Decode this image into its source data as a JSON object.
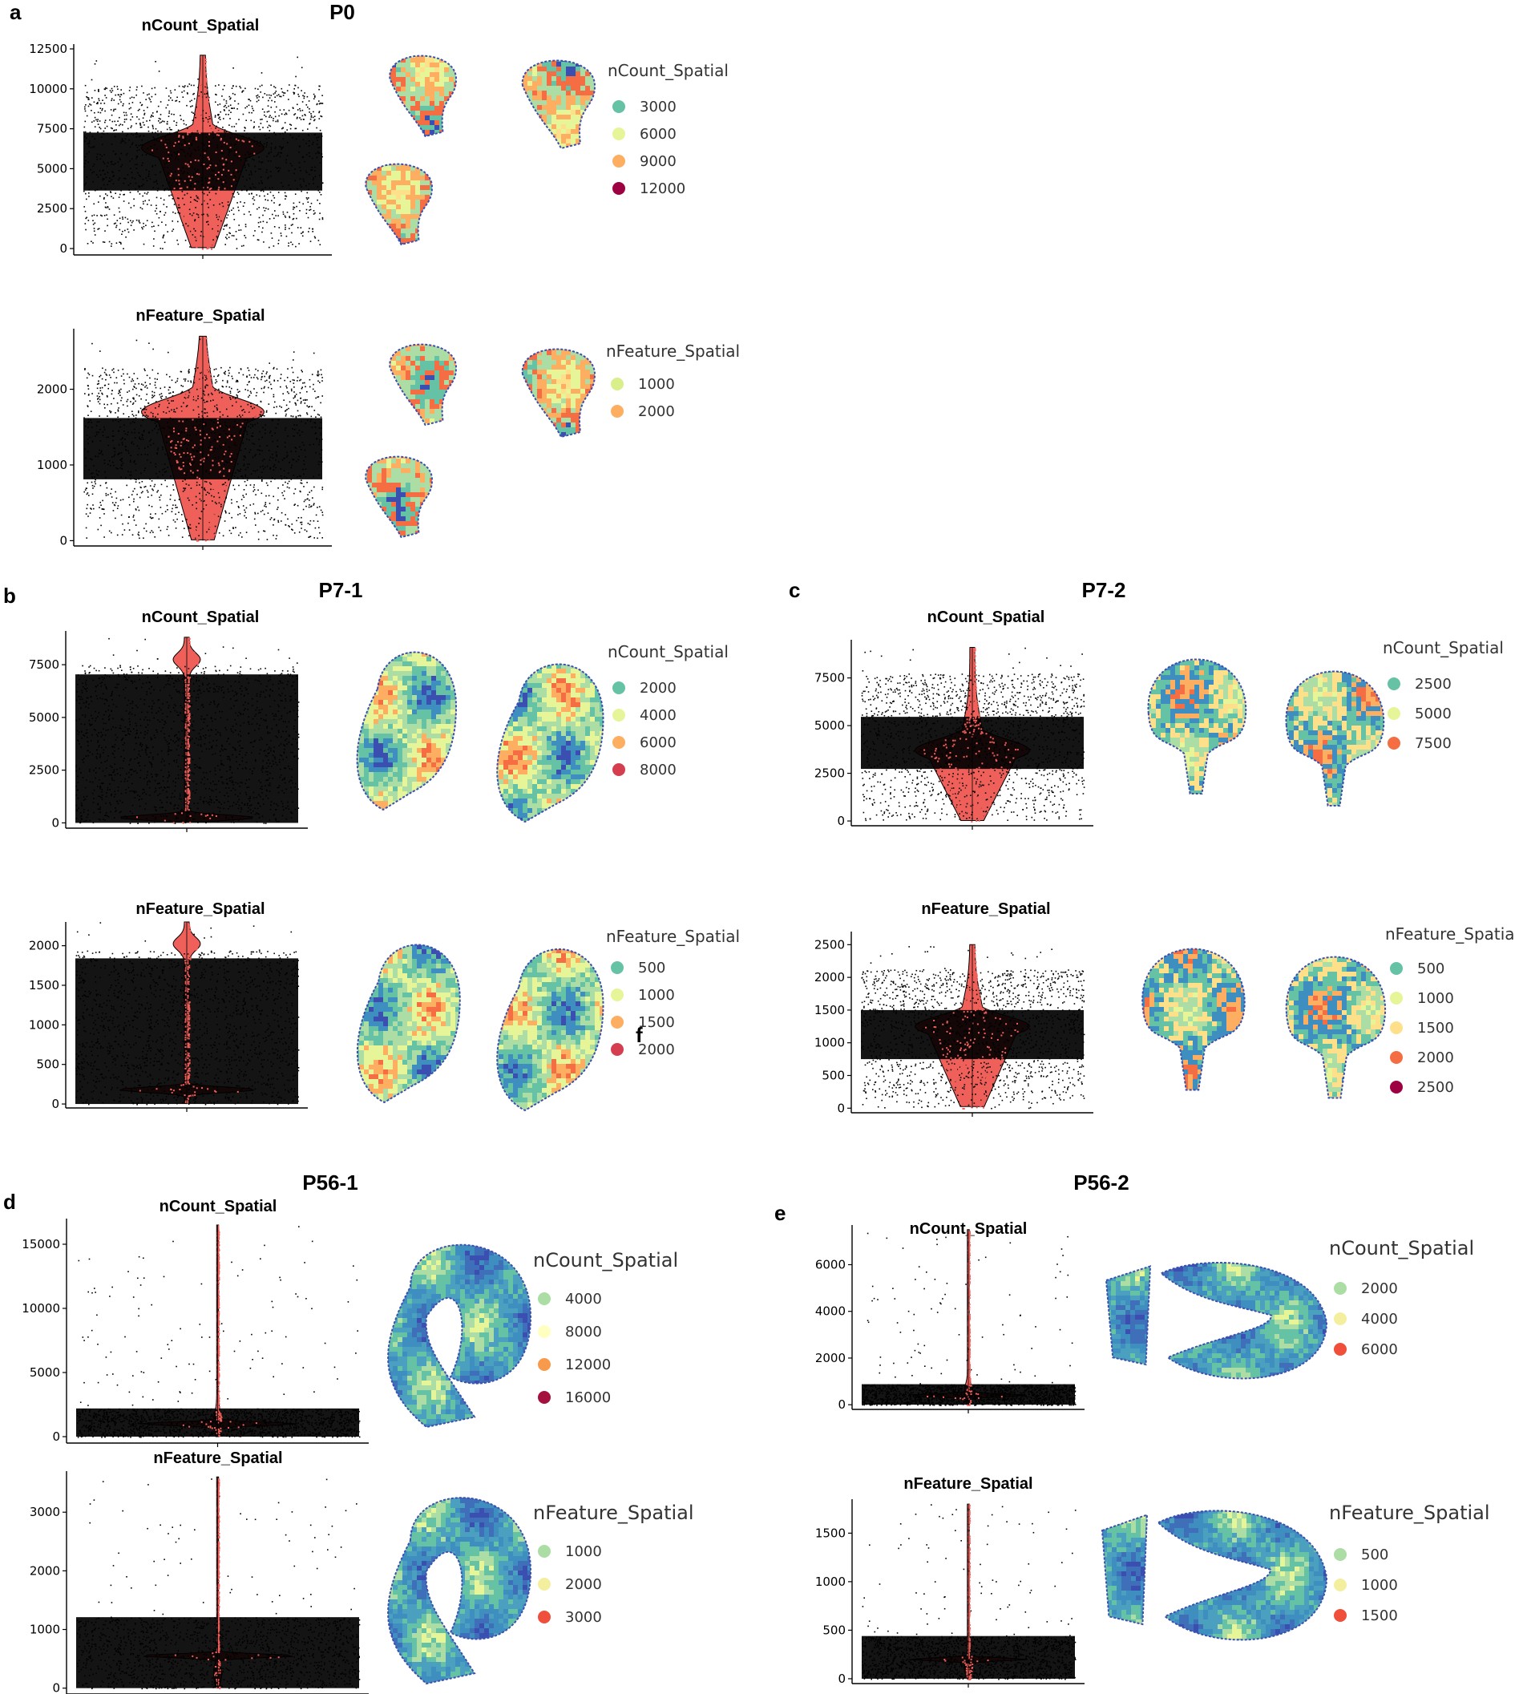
{
  "panel_labels": {
    "a": "a",
    "b": "b",
    "c": "c",
    "d": "d",
    "e": "e"
  },
  "sample_titles": {
    "a": "P0",
    "b": "P7-1",
    "c": "P7-2",
    "d": "P56-1",
    "e": "P56-2"
  },
  "stray_text": "f",
  "colors": {
    "violin_fill": "#f0605a",
    "points": "#000000",
    "spectral": [
      "#3b4fb0",
      "#3e8fc0",
      "#66c2a5",
      "#abdda4",
      "#e6f598",
      "#fee08b",
      "#fdae61",
      "#f46d43",
      "#d53e4f",
      "#9e0142"
    ]
  },
  "chart_data": [
    {
      "id": "a1",
      "type": "violin",
      "title": "nCount_Spatial",
      "ylim": [
        -400,
        12800
      ],
      "ytick_values": [
        0,
        2500,
        5000,
        7500,
        10000,
        12500
      ],
      "ytick_labels": [
        "0",
        "2500",
        "5000",
        "7500",
        "10000",
        "12500"
      ],
      "violin": {
        "min": 0,
        "max": 12100,
        "mode": 6300,
        "shape": "hourglass"
      },
      "legend": {
        "title": "nCount_Spatial",
        "items": [
          {
            "label": "3000",
            "color": "#66c2a5"
          },
          {
            "label": "6000",
            "color": "#e6f598"
          },
          {
            "label": "9000",
            "color": "#fdae61"
          },
          {
            "label": "12000",
            "color": "#9e0142"
          }
        ]
      }
    },
    {
      "id": "a2",
      "type": "violin",
      "title": "nFeature_Spatial",
      "ylim": [
        -70,
        2800
      ],
      "ytick_values": [
        0,
        1000,
        2000
      ],
      "ytick_labels": [
        "0",
        "1000",
        "2000"
      ],
      "violin": {
        "min": 0,
        "max": 2700,
        "mode": 1700,
        "shape": "hourglass"
      },
      "legend": {
        "title": "nFeature_Spatial",
        "items": [
          {
            "label": "1000",
            "color": "#d9ef8b"
          },
          {
            "label": "2000",
            "color": "#fdae61"
          }
        ]
      }
    },
    {
      "id": "b1",
      "type": "violin",
      "title": "nCount_Spatial",
      "ylim": [
        -250,
        9100
      ],
      "ytick_values": [
        0,
        2500,
        5000,
        7500
      ],
      "ytick_labels": [
        "0",
        "2500",
        "5000",
        "7500"
      ],
      "violin": {
        "min": 0,
        "max": 8800,
        "mode": 250,
        "shape": "bottom"
      },
      "legend": {
        "title": "nCount_Spatial",
        "items": [
          {
            "label": "2000",
            "color": "#66c2a5"
          },
          {
            "label": "4000",
            "color": "#e6f598"
          },
          {
            "label": "6000",
            "color": "#fdae61"
          },
          {
            "label": "8000",
            "color": "#d53e4f"
          }
        ]
      }
    },
    {
      "id": "b2",
      "type": "violin",
      "title": "nFeature_Spatial",
      "ylim": [
        -50,
        2300
      ],
      "ytick_values": [
        0,
        500,
        1000,
        1500,
        2000
      ],
      "ytick_labels": [
        "0",
        "500",
        "1000",
        "1500",
        "2000"
      ],
      "violin": {
        "min": 0,
        "max": 2300,
        "mode": 180,
        "shape": "bottom"
      },
      "legend": {
        "title": "nFeature_Spatial",
        "items": [
          {
            "label": "500",
            "color": "#66c2a5"
          },
          {
            "label": "1000",
            "color": "#e6f598"
          },
          {
            "label": "1500",
            "color": "#fdae61"
          },
          {
            "label": "2000",
            "color": "#d53e4f"
          }
        ]
      }
    },
    {
      "id": "c1",
      "type": "violin",
      "title": "nCount_Spatial",
      "ylim": [
        -250,
        9500
      ],
      "ytick_values": [
        0,
        2500,
        5000,
        7500
      ],
      "ytick_labels": [
        "0",
        "2500",
        "5000",
        "7500"
      ],
      "violin": {
        "min": 0,
        "max": 9100,
        "mode": 3700,
        "shape": "hourglass"
      },
      "legend": {
        "title": "nCount_Spatial",
        "items": [
          {
            "label": "2500",
            "color": "#66c2a5"
          },
          {
            "label": "5000",
            "color": "#e6f598"
          },
          {
            "label": "7500",
            "color": "#f46d43"
          }
        ]
      }
    },
    {
      "id": "c2",
      "type": "violin",
      "title": "nFeature_Spatial",
      "ylim": [
        -70,
        2700
      ],
      "ytick_values": [
        0,
        500,
        1000,
        1500,
        2000,
        2500
      ],
      "ytick_labels": [
        "0",
        "500",
        "1000",
        "1500",
        "2000",
        "2500"
      ],
      "violin": {
        "min": 0,
        "max": 2500,
        "mode": 1250,
        "shape": "hourglass"
      },
      "legend": {
        "title": "nFeature_Spatia",
        "items": [
          {
            "label": "500",
            "color": "#66c2a5"
          },
          {
            "label": "1000",
            "color": "#e6f598"
          },
          {
            "label": "1500",
            "color": "#fee08b"
          },
          {
            "label": "2000",
            "color": "#f46d43"
          },
          {
            "label": "2500",
            "color": "#9e0142"
          }
        ]
      }
    },
    {
      "id": "d1",
      "type": "violin",
      "title": "nCount_Spatial",
      "ylim": [
        -500,
        17000
      ],
      "ytick_values": [
        0,
        5000,
        10000,
        15000
      ],
      "ytick_labels": [
        "0",
        "5000",
        "10000",
        "15000"
      ],
      "violin": {
        "min": 0,
        "max": 16500,
        "mode": 1000,
        "shape": "thin"
      },
      "legend": {
        "title": "nCount_Spatial",
        "items": [
          {
            "label": "4000",
            "color": "#abdda4"
          },
          {
            "label": "8000",
            "color": "#ffffbf"
          },
          {
            "label": "12000",
            "color": "#f79a4b"
          },
          {
            "label": "16000",
            "color": "#a4113f"
          }
        ]
      }
    },
    {
      "id": "d2",
      "type": "violin",
      "title": "nFeature_Spatial",
      "ylim": [
        -100,
        3700
      ],
      "ytick_values": [
        0,
        1000,
        2000,
        3000
      ],
      "ytick_labels": [
        "0",
        "1000",
        "2000",
        "3000"
      ],
      "violin": {
        "min": 0,
        "max": 3600,
        "mode": 550,
        "shape": "thin"
      },
      "legend": {
        "title": "nFeature_Spatial",
        "items": [
          {
            "label": "1000",
            "color": "#abdda4"
          },
          {
            "label": "2000",
            "color": "#f3ef9f"
          },
          {
            "label": "3000",
            "color": "#ef4f3b"
          }
        ]
      }
    },
    {
      "id": "e1",
      "type": "violin",
      "title": "nCount_Spatial",
      "ylim": [
        -200,
        7700
      ],
      "ytick_values": [
        0,
        2000,
        4000,
        6000
      ],
      "ytick_labels": [
        "0",
        "2000",
        "4000",
        "6000"
      ],
      "violin": {
        "min": 0,
        "max": 7500,
        "mode": 400,
        "shape": "thin"
      },
      "legend": {
        "title": "nCount_Spatial",
        "items": [
          {
            "label": "2000",
            "color": "#abdda4"
          },
          {
            "label": "4000",
            "color": "#f3ef9f"
          },
          {
            "label": "6000",
            "color": "#ef4f3b"
          }
        ]
      }
    },
    {
      "id": "e2",
      "type": "violin",
      "title": "nFeature_Spatial",
      "ylim": [
        -50,
        1850
      ],
      "ytick_values": [
        0,
        500,
        1000,
        1500
      ],
      "ytick_labels": [
        "0",
        "500",
        "1000",
        "1500"
      ],
      "violin": {
        "min": 0,
        "max": 1800,
        "mode": 200,
        "shape": "thin"
      },
      "legend": {
        "title": "nFeature_Spatial",
        "items": [
          {
            "label": "500",
            "color": "#abdda4"
          },
          {
            "label": "1000",
            "color": "#f3ef9f"
          },
          {
            "label": "1500",
            "color": "#ef4f3b"
          }
        ]
      }
    }
  ]
}
